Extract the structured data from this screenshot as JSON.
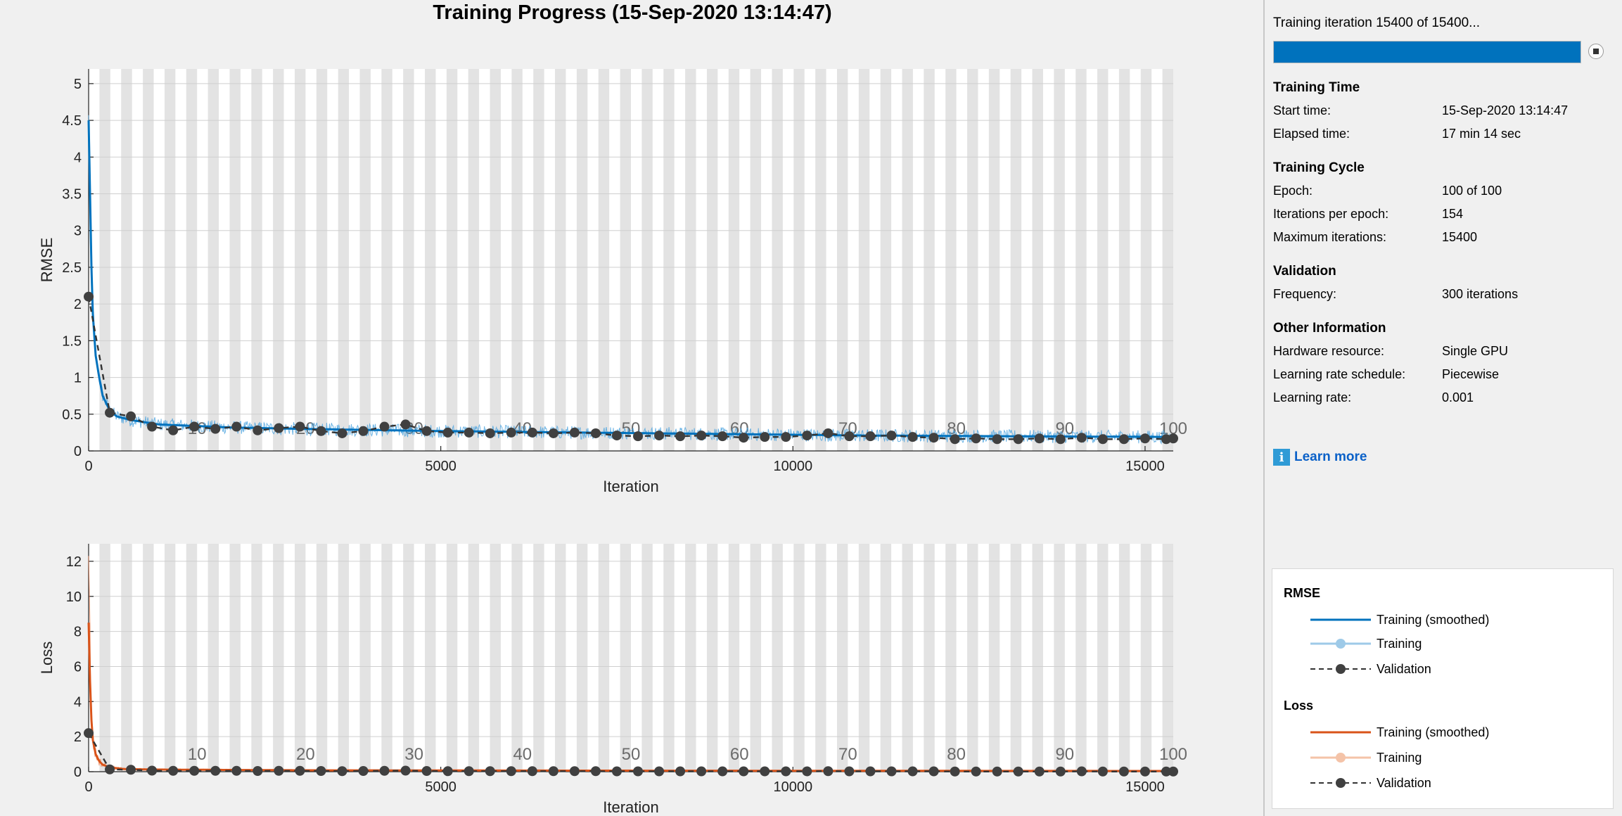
{
  "title": "Training Progress (15-Sep-2020 13:14:47)",
  "status": {
    "text": "Training iteration 15400 of 15400...",
    "progress": 1.0,
    "stop_icon": "stop-icon"
  },
  "info": {
    "training_time": {
      "title": "Training Time",
      "rows": [
        {
          "label": "Start time:",
          "value": "15-Sep-2020 13:14:47"
        },
        {
          "label": "Elapsed time:",
          "value": "17 min 14 sec"
        }
      ]
    },
    "training_cycle": {
      "title": "Training Cycle",
      "rows": [
        {
          "label": "Epoch:",
          "value": "100 of 100"
        },
        {
          "label": "Iterations per epoch:",
          "value": "154"
        },
        {
          "label": "Maximum iterations:",
          "value": "15400"
        }
      ]
    },
    "validation": {
      "title": "Validation",
      "rows": [
        {
          "label": "Frequency:",
          "value": "300 iterations"
        }
      ]
    },
    "other": {
      "title": "Other Information",
      "rows": [
        {
          "label": "Hardware resource:",
          "value": "Single GPU"
        },
        {
          "label": "Learning rate schedule:",
          "value": "Piecewise"
        },
        {
          "label": "Learning rate:",
          "value": "0.001"
        }
      ]
    }
  },
  "learn_more": {
    "label": "Learn more",
    "icon": "info-icon"
  },
  "legend": {
    "rmse": {
      "title": "RMSE",
      "items": [
        {
          "label": "Training (smoothed)",
          "style": "solid",
          "color": "#0072bd"
        },
        {
          "label": "Training",
          "style": "solid-marker",
          "color": "#9ecae8"
        },
        {
          "label": "Validation",
          "style": "dashed-marker",
          "color": "#333333"
        }
      ]
    },
    "loss": {
      "title": "Loss",
      "items": [
        {
          "label": "Training (smoothed)",
          "style": "solid",
          "color": "#d95319"
        },
        {
          "label": "Training",
          "style": "solid-marker",
          "color": "#f4c3a8"
        },
        {
          "label": "Validation",
          "style": "dashed-marker",
          "color": "#333333"
        }
      ]
    }
  },
  "colors": {
    "rmse_smoothed": "#0072bd",
    "rmse_raw": "#4aa3df",
    "loss_smoothed": "#d95319",
    "loss_raw": "#f08a5d",
    "validation": "#404040",
    "epoch_band": "#e3e3e3"
  },
  "chart_data": [
    {
      "type": "line",
      "ylabel": "RMSE",
      "xlabel": "Iteration",
      "xlim": [
        0,
        15400
      ],
      "ylim": [
        0,
        5.2
      ],
      "xticks": [
        0,
        5000,
        10000,
        15000
      ],
      "yticks": [
        0,
        0.5,
        1,
        1.5,
        2,
        2.5,
        3,
        3.5,
        4,
        4.5,
        5
      ],
      "grid": true,
      "epoch_labels": [
        10,
        20,
        30,
        40,
        50,
        60,
        70,
        80,
        90,
        100
      ],
      "iterations_per_epoch": 154,
      "series": [
        {
          "name": "Training (smoothed)",
          "x": [
            0,
            50,
            100,
            150,
            200,
            300,
            400,
            600,
            1000,
            2000,
            3000,
            5000,
            7000,
            9000,
            11000,
            13000,
            15400
          ],
          "values": [
            4.5,
            2.0,
            1.3,
            1.0,
            0.75,
            0.55,
            0.47,
            0.42,
            0.36,
            0.32,
            0.3,
            0.27,
            0.25,
            0.23,
            0.21,
            0.2,
            0.19
          ]
        },
        {
          "name": "Validation",
          "x": [
            0,
            300,
            600,
            900,
            1200,
            1500,
            1800,
            2100,
            2400,
            2700,
            3000,
            3300,
            3600,
            3900,
            4200,
            4500,
            4800,
            5100,
            5400,
            5700,
            6000,
            6300,
            6600,
            6900,
            7200,
            7500,
            7800,
            8100,
            8400,
            8700,
            9000,
            9300,
            9600,
            9900,
            10200,
            10500,
            10800,
            11100,
            11400,
            11700,
            12000,
            12300,
            12600,
            12900,
            13200,
            13500,
            13800,
            14100,
            14400,
            14700,
            15000,
            15300,
            15400
          ],
          "values": [
            2.1,
            0.52,
            0.47,
            0.33,
            0.28,
            0.33,
            0.3,
            0.33,
            0.28,
            0.31,
            0.33,
            0.27,
            0.24,
            0.27,
            0.33,
            0.36,
            0.27,
            0.25,
            0.25,
            0.24,
            0.25,
            0.25,
            0.24,
            0.25,
            0.24,
            0.21,
            0.2,
            0.21,
            0.2,
            0.21,
            0.2,
            0.18,
            0.19,
            0.19,
            0.21,
            0.24,
            0.2,
            0.2,
            0.21,
            0.19,
            0.18,
            0.16,
            0.17,
            0.16,
            0.16,
            0.17,
            0.16,
            0.18,
            0.16,
            0.16,
            0.17,
            0.16,
            0.17
          ]
        }
      ]
    },
    {
      "type": "line",
      "ylabel": "Loss",
      "xlabel": "Iteration",
      "xlim": [
        0,
        15400
      ],
      "ylim": [
        0,
        13
      ],
      "xticks": [
        0,
        5000,
        10000,
        15000
      ],
      "yticks": [
        0,
        2,
        4,
        6,
        8,
        10,
        12
      ],
      "grid": true,
      "epoch_labels": [
        10,
        20,
        30,
        40,
        50,
        60,
        70,
        80,
        90,
        100
      ],
      "iterations_per_epoch": 154,
      "series": [
        {
          "name": "Training (smoothed)",
          "x": [
            0,
            30,
            60,
            100,
            150,
            200,
            300,
            500,
            1000,
            3000,
            7000,
            11000,
            15400
          ],
          "values": [
            8.5,
            3.5,
            1.8,
            1.0,
            0.6,
            0.4,
            0.25,
            0.15,
            0.12,
            0.08,
            0.06,
            0.05,
            0.04
          ]
        },
        {
          "name": "Validation",
          "x": [
            0,
            300,
            600,
            900,
            1200,
            1500,
            1800,
            2100,
            2400,
            2700,
            3000,
            3300,
            3600,
            3900,
            4200,
            4500,
            4800,
            5100,
            5400,
            5700,
            6000,
            6300,
            6600,
            6900,
            7200,
            7500,
            7800,
            8100,
            8400,
            8700,
            9000,
            9300,
            9600,
            9900,
            10200,
            10500,
            10800,
            11100,
            11400,
            11700,
            12000,
            12300,
            12600,
            12900,
            13200,
            13500,
            13800,
            14100,
            14400,
            14700,
            15000,
            15300,
            15400
          ],
          "values": [
            2.2,
            0.13,
            0.11,
            0.06,
            0.05,
            0.05,
            0.05,
            0.05,
            0.04,
            0.05,
            0.05,
            0.04,
            0.03,
            0.04,
            0.05,
            0.06,
            0.04,
            0.03,
            0.03,
            0.03,
            0.03,
            0.03,
            0.03,
            0.03,
            0.03,
            0.02,
            0.02,
            0.02,
            0.02,
            0.02,
            0.02,
            0.02,
            0.02,
            0.02,
            0.02,
            0.03,
            0.02,
            0.02,
            0.02,
            0.02,
            0.02,
            0.01,
            0.01,
            0.01,
            0.01,
            0.01,
            0.01,
            0.02,
            0.01,
            0.01,
            0.01,
            0.01,
            0.01
          ]
        }
      ]
    }
  ]
}
